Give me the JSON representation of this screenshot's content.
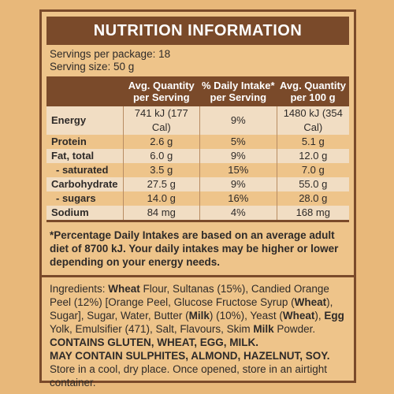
{
  "title": "NUTRITION INFORMATION",
  "servings_per_package": "Servings per package: 18",
  "serving_size": "Serving size: 50 g",
  "table": {
    "headers": [
      "",
      "Avg. Quantity per Serving",
      "% Daily Intake* per Serving",
      "Avg. Quantity per 100 g"
    ],
    "rows": [
      {
        "label": "Energy",
        "per_serving": "741 kJ (177 Cal)",
        "daily_intake": "9%",
        "per_100g": "1480 kJ (354 Cal)"
      },
      {
        "label": "Protein",
        "per_serving": "2.6 g",
        "daily_intake": "5%",
        "per_100g": "5.1 g"
      },
      {
        "label": "Fat, total",
        "per_serving": "6.0 g",
        "daily_intake": "9%",
        "per_100g": "12.0 g"
      },
      {
        "label": "- saturated",
        "per_serving": "3.5 g",
        "daily_intake": "15%",
        "per_100g": "7.0 g"
      },
      {
        "label": "Carbohydrate",
        "per_serving": "27.5 g",
        "daily_intake": "9%",
        "per_100g": "55.0 g"
      },
      {
        "label": "- sugars",
        "per_serving": "14.0 g",
        "daily_intake": "16%",
        "per_100g": "28.0 g"
      },
      {
        "label": "Sodium",
        "per_serving": "84 mg",
        "daily_intake": "4%",
        "per_100g": "168 mg"
      }
    ]
  },
  "footnote": "*Percentage Daily Intakes are based on an average adult diet of 8700 kJ. Your daily intakes may be higher or lower depending on your energy needs.",
  "ingredients": {
    "p1": "Ingredients: ",
    "b1": "Wheat",
    "p2": " Flour, Sultanas (15%), Candied Orange Peel (12%) [Orange Peel, Glucose Fructose Syrup (",
    "b2": "Wheat",
    "p3": "), Sugar], Sugar, Water, Butter (",
    "b3": "Milk",
    "p4": ") (10%), Yeast (",
    "b4": "Wheat",
    "p5": "), ",
    "b5": "Egg",
    "p6": " Yolk, Emulsifier (471), Salt, Flavours, Skim ",
    "b6": "Milk",
    "p7": " Powder."
  },
  "contains": "CONTAINS GLUTEN, WHEAT, EGG, MILK.",
  "may_contain": "MAY CONTAIN SULPHITES, ALMOND, HAZELNUT, SOY.",
  "storage": "Store in a cool, dry place. Once opened, store in an airtight container."
}
